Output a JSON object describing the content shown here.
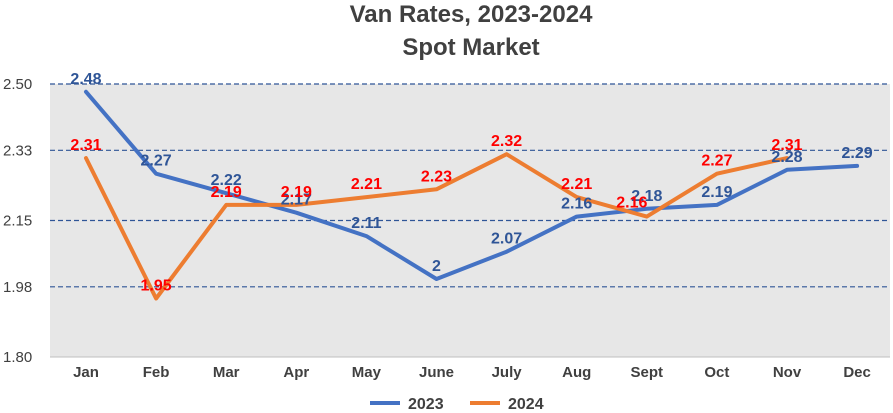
{
  "chart_data": {
    "type": "line",
    "title": "Van Rates, 2023-2024",
    "subtitle": "Spot Market",
    "categories": [
      "Jan",
      "Feb",
      "Mar",
      "Apr",
      "May",
      "June",
      "July",
      "Aug",
      "Sept",
      "Oct",
      "Nov",
      "Dec"
    ],
    "yticks": [
      "1.80",
      "1.98",
      "2.15",
      "2.33",
      "2.50"
    ],
    "ylim": [
      1.8,
      2.5
    ],
    "grid": "horizontal dashed",
    "legend_position": "bottom",
    "series": [
      {
        "name": "2023",
        "color": "#4472C4",
        "label_color": "#2F5597",
        "values": [
          2.48,
          2.27,
          2.22,
          2.17,
          2.11,
          2.0,
          2.07,
          2.16,
          2.18,
          2.19,
          2.28,
          2.29
        ],
        "labels": [
          "2.48",
          "2.27",
          "2.22",
          "2.17",
          "2.11",
          "2",
          "2.07",
          "2.16",
          "2.18",
          "2.19",
          "2.28",
          "2.29"
        ]
      },
      {
        "name": "2024",
        "color": "#ED7D31",
        "label_color": "#FF0000",
        "values": [
          2.31,
          1.95,
          2.19,
          2.19,
          2.21,
          2.23,
          2.32,
          2.21,
          2.16,
          2.27,
          2.31,
          null
        ],
        "labels": [
          "2.31",
          "1.95",
          "2.19",
          "2.19",
          "2.21",
          "2.23",
          "2.32",
          "2.21",
          "2.16",
          "2.27",
          "2.31",
          null
        ]
      }
    ]
  }
}
